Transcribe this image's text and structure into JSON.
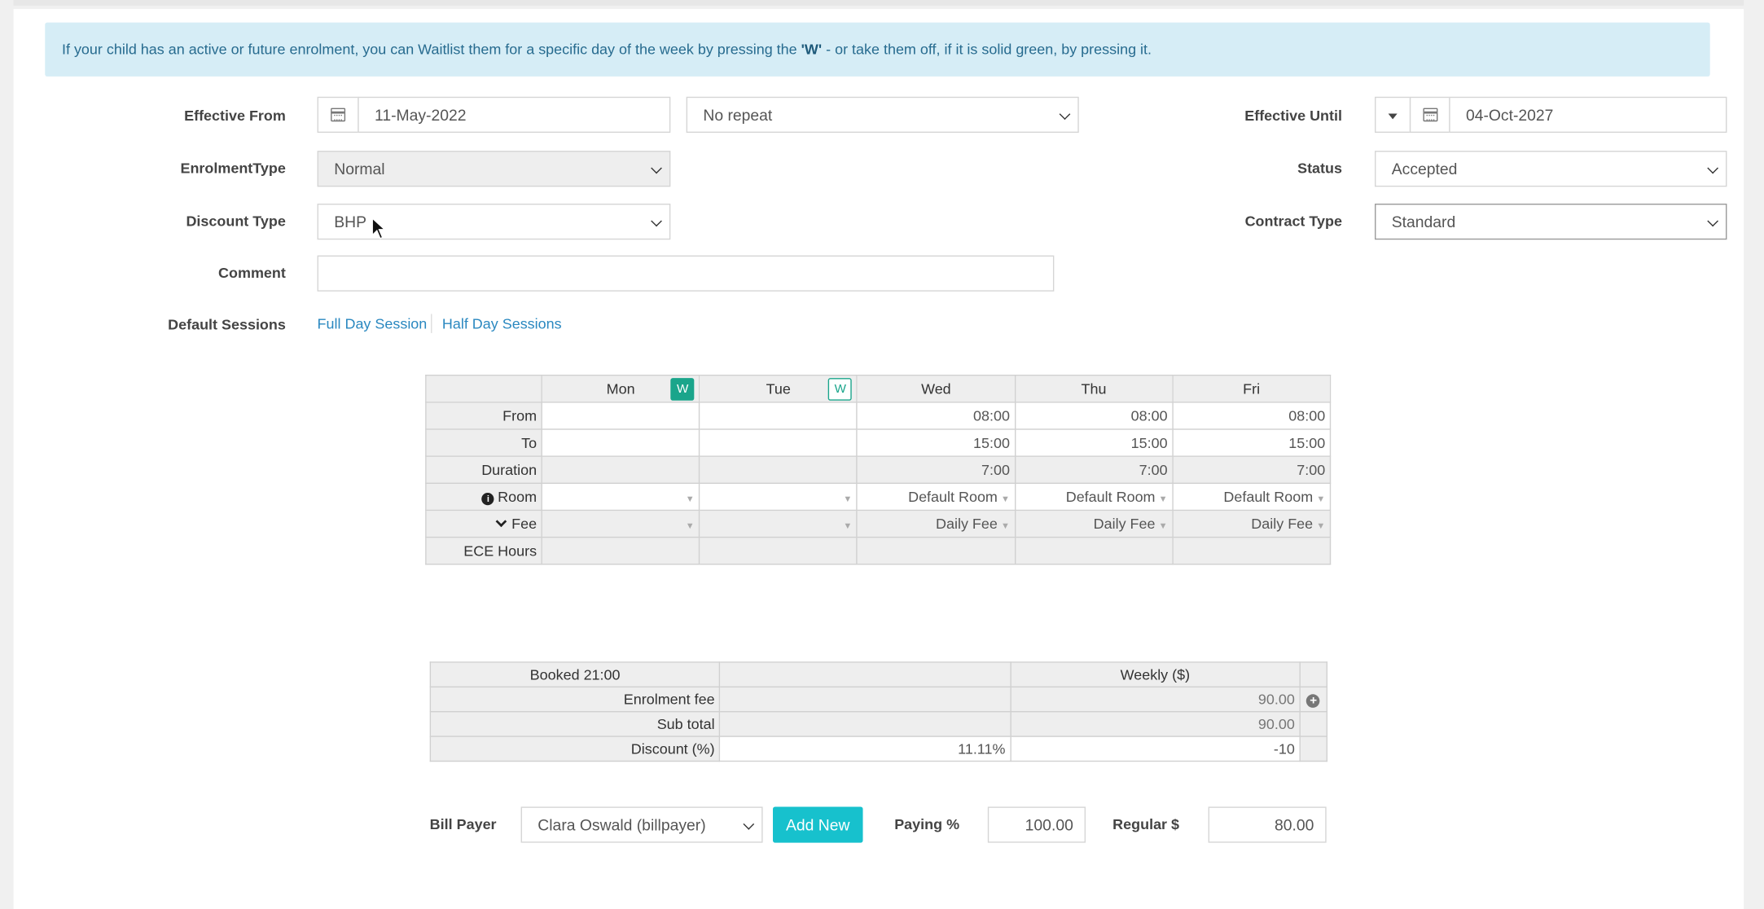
{
  "alert": {
    "text_before": "If your child has an active or future enrolment, you can Waitlist them for a specific day of the week by pressing the ",
    "text_bold": "'W'",
    "text_after": " - or take them off, if it is solid green, by pressing it."
  },
  "form": {
    "effective_from": {
      "label": "Effective From",
      "value": "11-May-2022"
    },
    "repeat": {
      "value": "No repeat"
    },
    "effective_until": {
      "label": "Effective Until",
      "value": "04-Oct-2027"
    },
    "enrolment_type": {
      "label": "EnrolmentType",
      "value": "Normal"
    },
    "status": {
      "label": "Status",
      "value": "Accepted"
    },
    "discount_type": {
      "label": "Discount Type",
      "value": "BHP"
    },
    "contract_type": {
      "label": "Contract Type",
      "value": "Standard"
    },
    "comment": {
      "label": "Comment",
      "value": ""
    },
    "default_sessions": {
      "label": "Default Sessions",
      "full_day": "Full Day Session",
      "half_day": "Half Day Sessions"
    }
  },
  "schedule": {
    "days": [
      {
        "name": "Mon",
        "w": "W",
        "w_state": "solid",
        "from": "",
        "to": "",
        "duration": "",
        "room": "",
        "fee": "",
        "ece": ""
      },
      {
        "name": "Tue",
        "w": "W",
        "w_state": "outline",
        "from": "",
        "to": "",
        "duration": "",
        "room": "",
        "fee": "",
        "ece": ""
      },
      {
        "name": "Wed",
        "from": "08:00",
        "to": "15:00",
        "duration": "7:00",
        "room": "Default Room",
        "fee": "Daily Fee",
        "ece": ""
      },
      {
        "name": "Thu",
        "from": "08:00",
        "to": "15:00",
        "duration": "7:00",
        "room": "Default Room",
        "fee": "Daily Fee",
        "ece": ""
      },
      {
        "name": "Fri",
        "from": "08:00",
        "to": "15:00",
        "duration": "7:00",
        "room": "Default Room",
        "fee": "Daily Fee",
        "ece": ""
      }
    ],
    "row_labels": {
      "from": "From",
      "to": "To",
      "duration": "Duration",
      "room": "Room",
      "fee": "Fee",
      "ece": "ECE Hours"
    }
  },
  "summary": {
    "booked": "Booked 21:00",
    "weekly_header": "Weekly ($)",
    "rows": [
      {
        "label": "Enrolment fee",
        "mid": "",
        "weekly": "90.00"
      },
      {
        "label": "Sub total",
        "mid": "",
        "weekly": "90.00"
      },
      {
        "label": "Discount (%)",
        "mid": "11.11%",
        "weekly": "-10"
      }
    ]
  },
  "billing": {
    "bill_payer_label": "Bill Payer",
    "bill_payer_value": "Clara Oswald (billpayer)",
    "add_new": "Add New",
    "paying_label": "Paying %",
    "paying_value": "100.00",
    "regular_label": "Regular $",
    "regular_value": "80.00"
  },
  "colors": {
    "accent_green": "#1aa58b",
    "button_cyan": "#17c1cd",
    "link_blue": "#2a88c0",
    "alert_bg": "#d6edf6"
  }
}
